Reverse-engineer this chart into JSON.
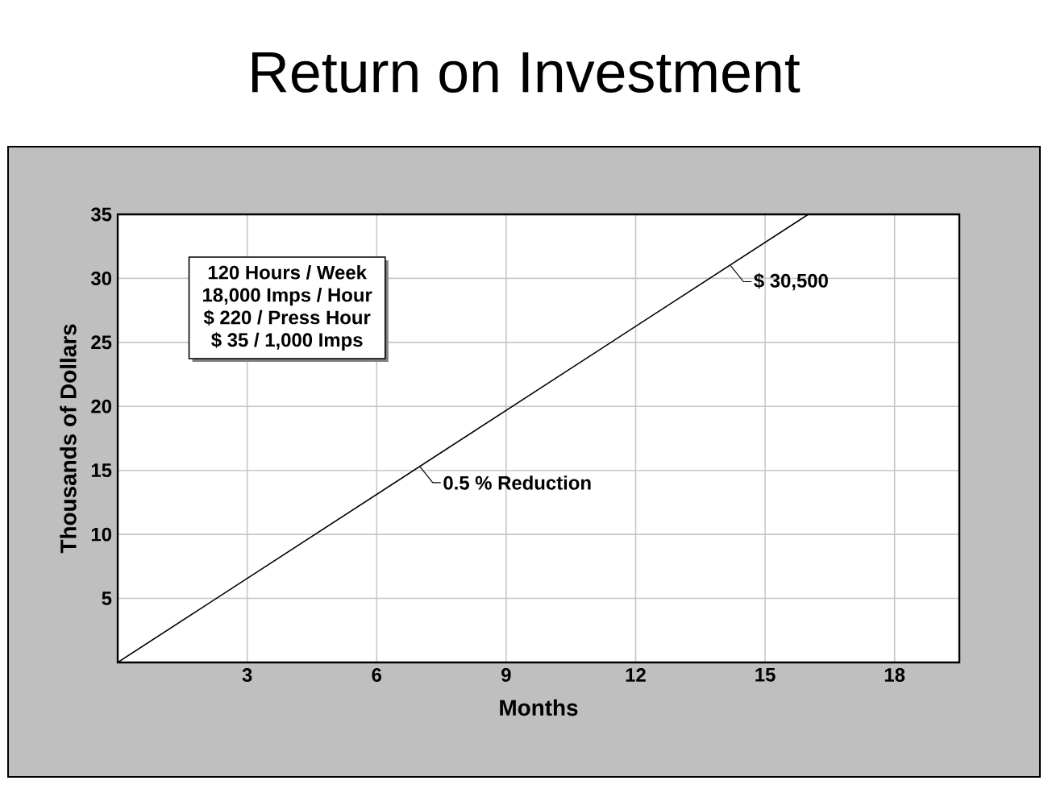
{
  "chart_data": {
    "type": "line",
    "title": "Return on Investment",
    "xlabel": "Months",
    "ylabel": "Thousands of Dollars",
    "x": [
      0,
      16
    ],
    "series": [
      {
        "color": "#000000",
        "values": [
          0,
          35
        ]
      }
    ],
    "xlim": [
      0,
      19.5
    ],
    "ylim": [
      0,
      35
    ],
    "xticks": [
      3,
      6,
      9,
      12,
      15,
      18
    ],
    "yticks": [
      5,
      10,
      15,
      20,
      25,
      30,
      35
    ],
    "grid": true,
    "annotations": [
      "120 Hours / Week",
      "18,000 Imps / Hour",
      "$ 220 / Press Hour",
      "$ 35 / 1,000 Imps",
      {
        "text": "0.5 % Reduction",
        "x": 7,
        "y": 15.3
      },
      {
        "text": "$ 30,500",
        "x": 14.2,
        "y": 31
      }
    ]
  }
}
